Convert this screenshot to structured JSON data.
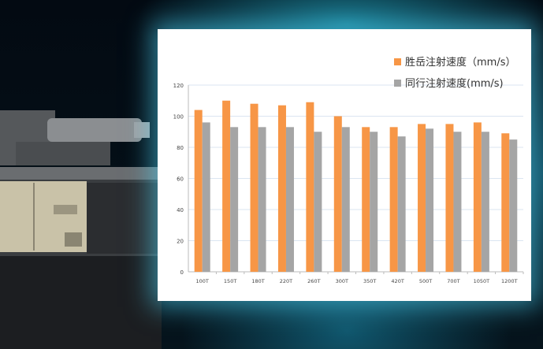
{
  "chart_data": {
    "type": "bar",
    "categories": [
      "100T",
      "150T",
      "180T",
      "220T",
      "260T",
      "300T",
      "350T",
      "420T",
      "500T",
      "700T",
      "1050T",
      "1200T"
    ],
    "series": [
      {
        "name": "胜岳注射速度（mm/s）",
        "color": "#f79646",
        "values": [
          104,
          110,
          108,
          107,
          109,
          100,
          93,
          93,
          95,
          95,
          96,
          89
        ]
      },
      {
        "name": "同行注射速度(mm/s)",
        "color": "#a5a5a5",
        "values": [
          96,
          93,
          93,
          93,
          90,
          93,
          90,
          87,
          92,
          90,
          90,
          85
        ]
      }
    ],
    "yticks": [
      0,
      20,
      40,
      60,
      80,
      100,
      120
    ],
    "ylim": [
      0,
      120
    ],
    "grid": true,
    "legend": "top-right"
  }
}
